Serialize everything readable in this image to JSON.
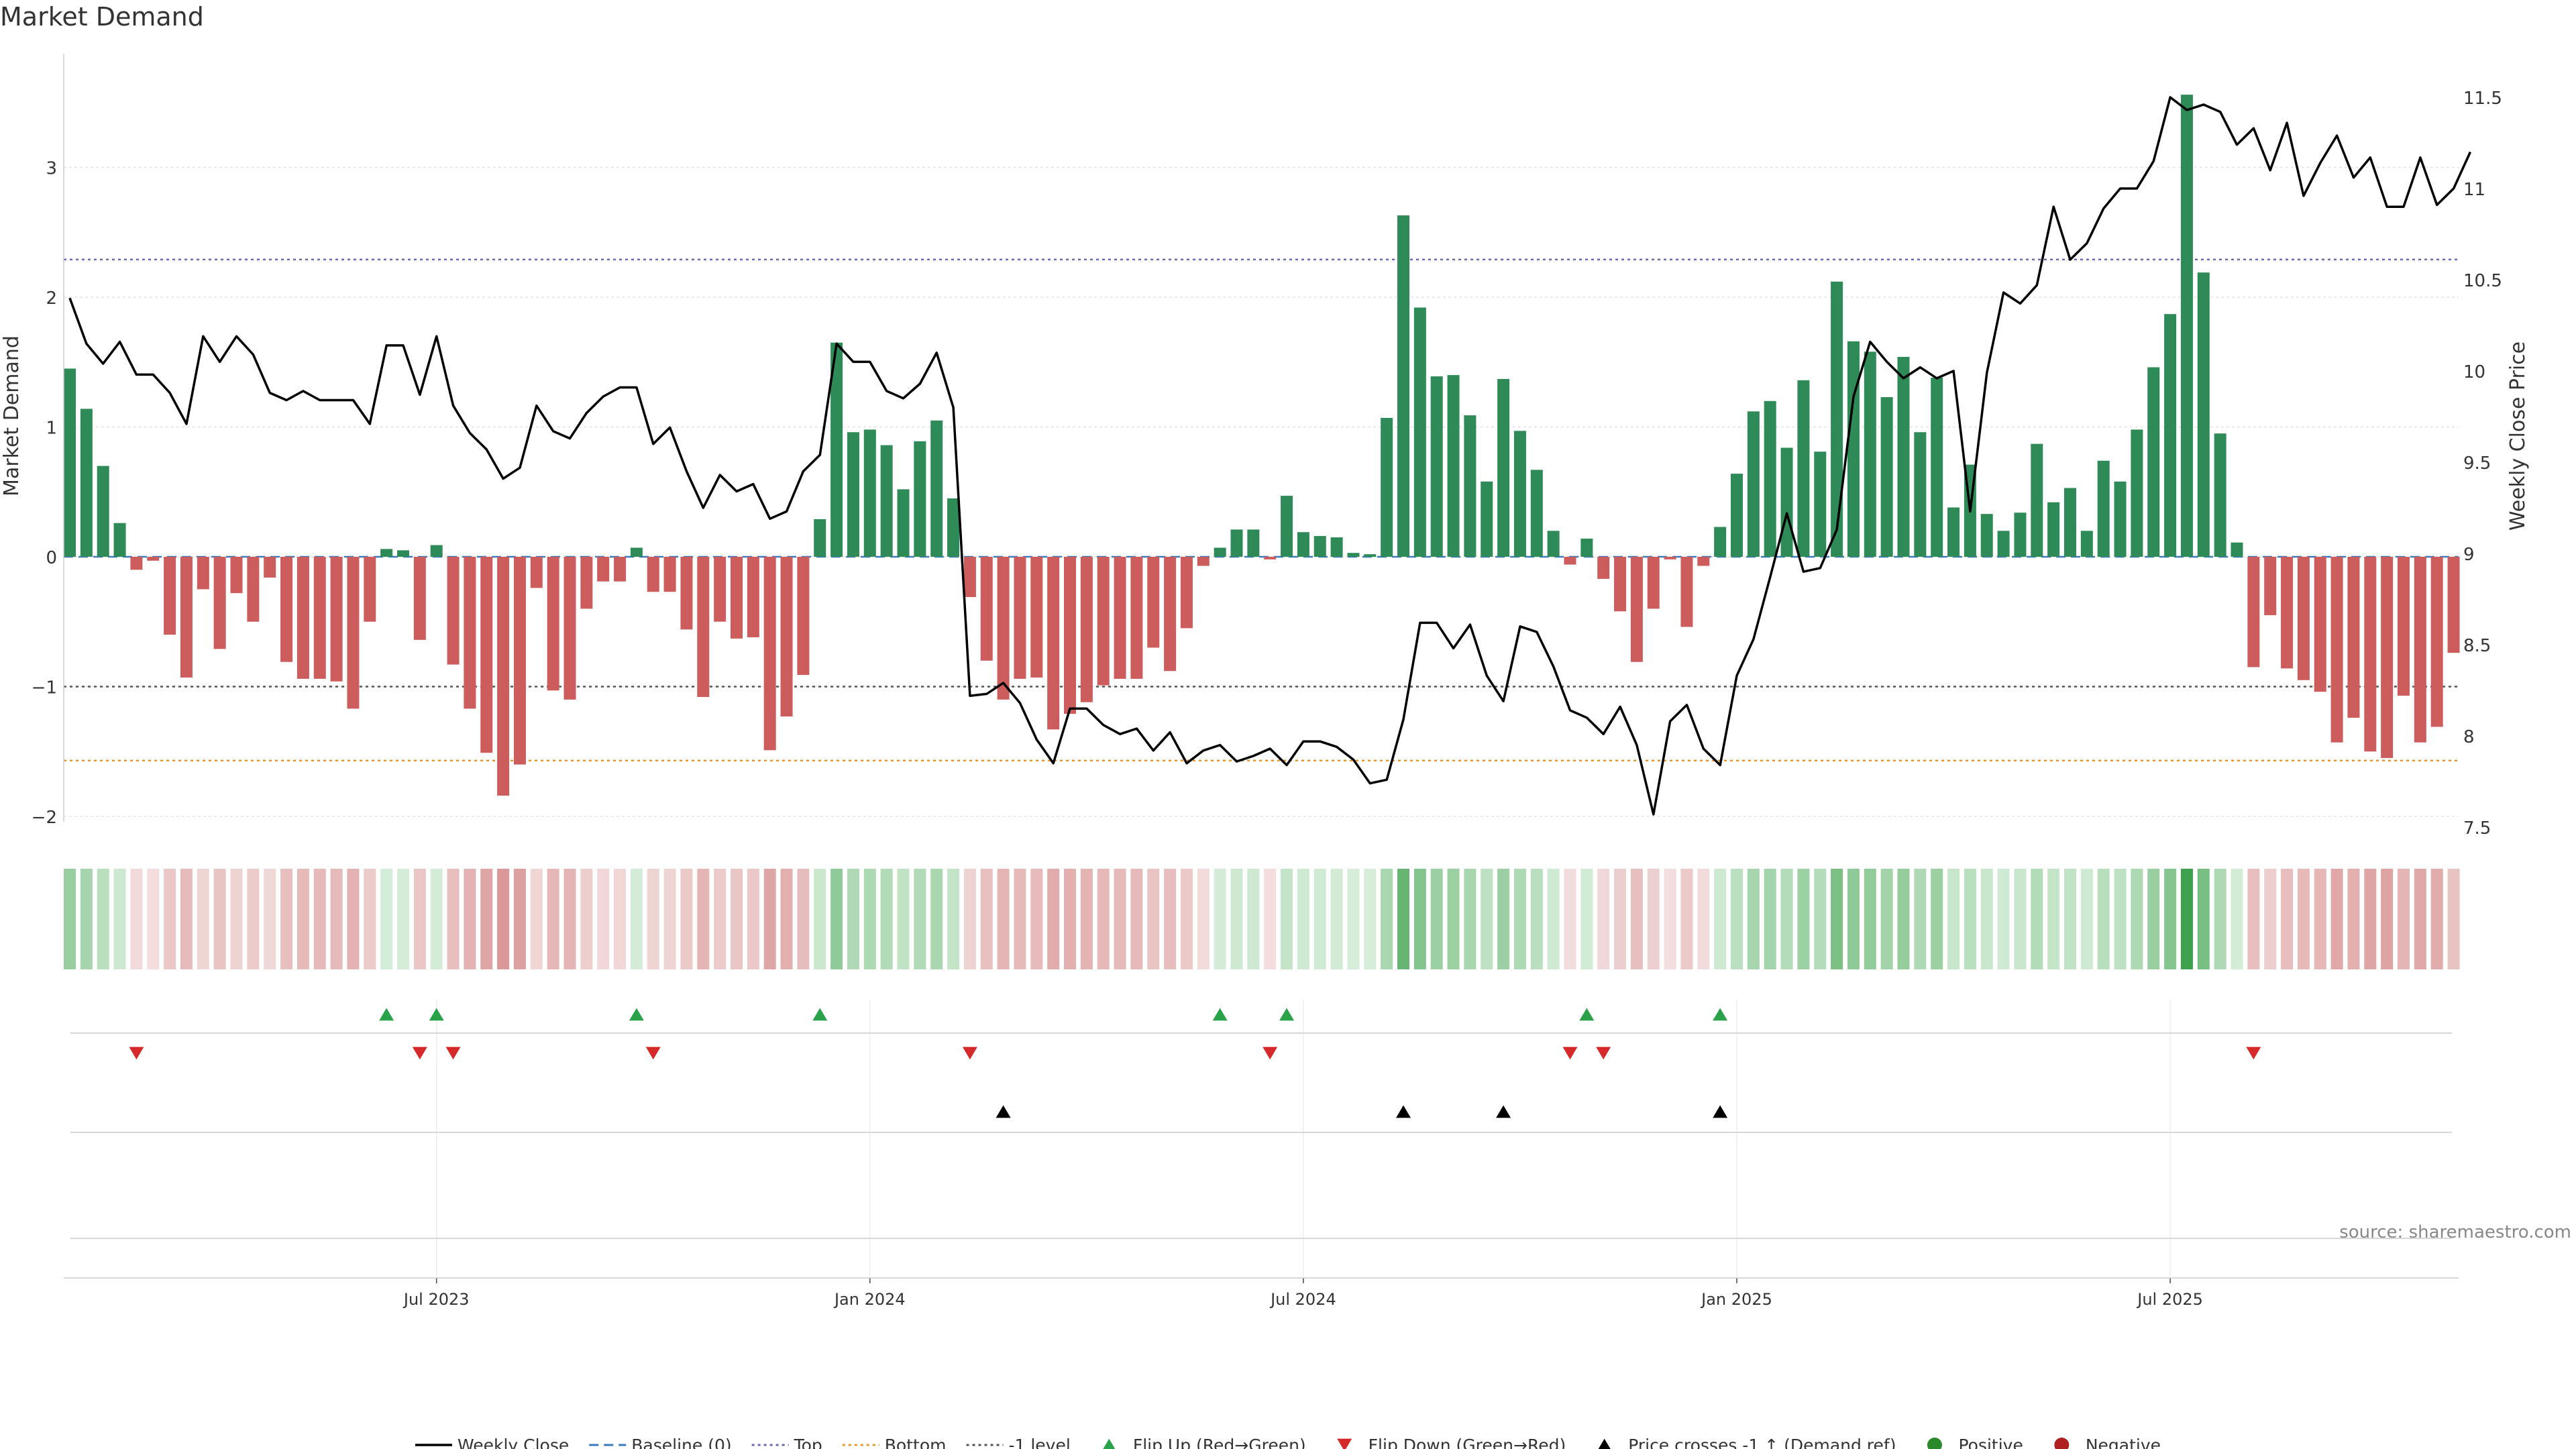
{
  "chart_data": {
    "type": "bar",
    "title": "Market Demand",
    "ylabel": "Market Demand",
    "y2label": "Weekly Close Price",
    "ylim": [
      -2.2,
      3.9
    ],
    "y2lim": [
      7.5,
      11.7
    ],
    "yticks": [
      -2,
      -1,
      0,
      1,
      2,
      3
    ],
    "yticklabels": [
      "−2",
      "−1",
      "0",
      "1",
      "2",
      "3"
    ],
    "y2ticks": [
      7.5,
      8,
      8.5,
      9,
      9.5,
      10,
      10.5,
      11,
      11.5
    ],
    "y2ticklabels": [
      "7.5",
      "8",
      "8.5",
      "9",
      "9.5",
      "10",
      "10.5",
      "11",
      "11.5"
    ],
    "xticklabels": [
      "Jul 2023",
      "Jan 2024",
      "Jul 2024",
      "Jan 2025",
      "Jul 2025"
    ],
    "xtick_week_index": [
      22,
      48,
      74,
      100,
      126
    ],
    "reference_lines": [
      {
        "name": "Top",
        "value": 2.29,
        "color": "#6a6ab0",
        "style": "dotted"
      },
      {
        "name": "Bottom",
        "value": -1.57,
        "color": "#e69a2e",
        "style": "dotted"
      },
      {
        "name": "-1 level",
        "value": -1,
        "color": "#555555",
        "style": "dotted"
      },
      {
        "name": "Baseline (0)",
        "value": 0,
        "color": "#3a7abd",
        "style": "dashed"
      }
    ],
    "series": [
      {
        "name": "Market Demand",
        "type": "bar",
        "values": [
          1.45,
          1.14,
          0.7,
          0.26,
          -0.1,
          -0.03,
          -0.6,
          -0.93,
          -0.25,
          -0.71,
          -0.28,
          -0.5,
          -0.16,
          -0.81,
          -0.94,
          -0.94,
          -0.96,
          -1.17,
          -0.5,
          0.06,
          0.05,
          -0.64,
          0.09,
          -0.83,
          -1.17,
          -1.51,
          -1.84,
          -1.6,
          -0.24,
          -1.03,
          -1.1,
          -0.4,
          -0.19,
          -0.19,
          0.07,
          -0.27,
          -0.27,
          -0.56,
          -1.08,
          -0.5,
          -0.63,
          -0.62,
          -1.49,
          -1.23,
          -0.91,
          0.29,
          1.65,
          0.96,
          0.98,
          0.86,
          0.52,
          0.89,
          1.05,
          0.45,
          -0.31,
          -0.8,
          -1.1,
          -0.94,
          -0.93,
          -1.33,
          -1.21,
          -1.12,
          -0.99,
          -0.94,
          -0.94,
          -0.7,
          -0.88,
          -0.55,
          -0.07,
          0.07,
          0.21,
          0.21,
          -0.02,
          0.47,
          0.19,
          0.16,
          0.15,
          0.03,
          0.02,
          1.07,
          2.63,
          1.92,
          1.39,
          1.4,
          1.09,
          0.58,
          1.37,
          0.97,
          0.67,
          0.2,
          -0.06,
          0.14,
          -0.17,
          -0.42,
          -0.81,
          -0.4,
          -0.02,
          -0.54,
          -0.07,
          0.23,
          0.64,
          1.12,
          1.2,
          0.84,
          1.36,
          0.81,
          2.12,
          1.66,
          1.58,
          1.23,
          1.54,
          0.96,
          1.38,
          0.38,
          0.71,
          0.33,
          0.2,
          0.34,
          0.87,
          0.42,
          0.53,
          0.2,
          0.74,
          0.58,
          0.98,
          1.46,
          1.87,
          3.56,
          2.19,
          0.95,
          0.11,
          -0.85,
          -0.45,
          -0.86,
          -0.95,
          -1.04,
          -1.43,
          -1.24,
          -1.5,
          -1.55,
          -1.07,
          -1.43,
          -1.31,
          -0.74
        ]
      },
      {
        "name": "Weekly Close",
        "type": "line",
        "values": [
          10.4,
          10.15,
          10.04,
          10.16,
          9.98,
          9.98,
          9.88,
          9.71,
          10.19,
          10.05,
          10.19,
          10.09,
          9.88,
          9.84,
          9.89,
          9.84,
          9.84,
          9.84,
          9.71,
          10.14,
          10.14,
          9.87,
          10.19,
          9.81,
          9.66,
          9.57,
          9.41,
          9.47,
          9.81,
          9.67,
          9.63,
          9.77,
          9.86,
          9.91,
          9.91,
          9.6,
          9.69,
          9.45,
          9.25,
          9.43,
          9.34,
          9.38,
          9.19,
          9.23,
          9.45,
          9.54,
          10.15,
          10.05,
          10.05,
          9.89,
          9.85,
          9.93,
          10.1,
          9.8,
          8.22,
          8.23,
          8.29,
          8.18,
          7.98,
          7.85,
          8.15,
          8.15,
          8.06,
          8.01,
          8.04,
          7.92,
          8.02,
          7.85,
          7.92,
          7.95,
          7.86,
          7.89,
          7.93,
          7.84,
          7.97,
          7.97,
          7.94,
          7.87,
          7.74,
          7.76,
          8.09,
          8.62,
          8.62,
          8.48,
          8.61,
          8.33,
          8.19,
          8.6,
          8.57,
          8.38,
          8.14,
          8.1,
          8.01,
          8.16,
          7.95,
          7.57,
          8.08,
          8.17,
          7.93,
          7.84,
          8.33,
          8.53,
          8.87,
          9.22,
          8.9,
          8.92,
          9.13,
          9.86,
          10.16,
          10.05,
          9.96,
          10.02,
          9.96,
          10.0,
          9.23,
          9.99,
          10.43,
          10.37,
          10.47,
          10.9,
          10.61,
          10.7,
          10.89,
          11.0,
          11.0,
          11.15,
          11.5,
          11.43,
          11.46,
          11.42,
          11.24,
          11.33,
          11.1,
          11.36,
          10.96,
          11.14,
          11.29,
          11.06,
          11.17,
          10.9,
          10.9,
          11.17,
          10.91,
          11.0,
          11.2
        ]
      }
    ],
    "events": [
      {
        "name": "Flip Up (Red→Green)",
        "week_index": [
          19,
          22,
          34,
          45,
          69,
          73,
          91,
          99
        ]
      },
      {
        "name": "Flip Down (Green→Red)",
        "week_index": [
          4,
          21,
          23,
          35,
          54,
          72,
          90,
          92,
          131
        ]
      },
      {
        "name": "Price crosses -1 ↑ (Demand ref)",
        "week_index": [
          56,
          80,
          86,
          99
        ]
      }
    ],
    "legend": {
      "placement": "bottom",
      "items": [
        {
          "label": "Weekly Close",
          "symbol": "line",
          "color": "#000000"
        },
        {
          "label": "Baseline (0)",
          "symbol": "dash",
          "color": "#3a7abd"
        },
        {
          "label": "Top",
          "symbol": "dot",
          "color": "#6a6ab0"
        },
        {
          "label": "Bottom",
          "symbol": "dot",
          "color": "#e69a2e"
        },
        {
          "label": "-1 level",
          "symbol": "dot",
          "color": "#555555"
        },
        {
          "label": "Flip Up (Red→Green)",
          "symbol": "tri-up",
          "color": "#2aa24a"
        },
        {
          "label": "Flip Down (Green→Red)",
          "symbol": "tri-down",
          "color": "#d62a2a"
        },
        {
          "label": "Price crosses -1 ↑ (Demand ref)",
          "symbol": "tri-up",
          "color": "#000000"
        },
        {
          "label": "Positive",
          "symbol": "circle",
          "color": "#2a8a2a"
        },
        {
          "label": "Negative",
          "symbol": "circle",
          "color": "#b02020"
        }
      ]
    },
    "colors": {
      "positive_bar": "#2e8b57",
      "negative_bar": "#cd5c5c"
    },
    "source": "source: sharemaestro.com"
  }
}
